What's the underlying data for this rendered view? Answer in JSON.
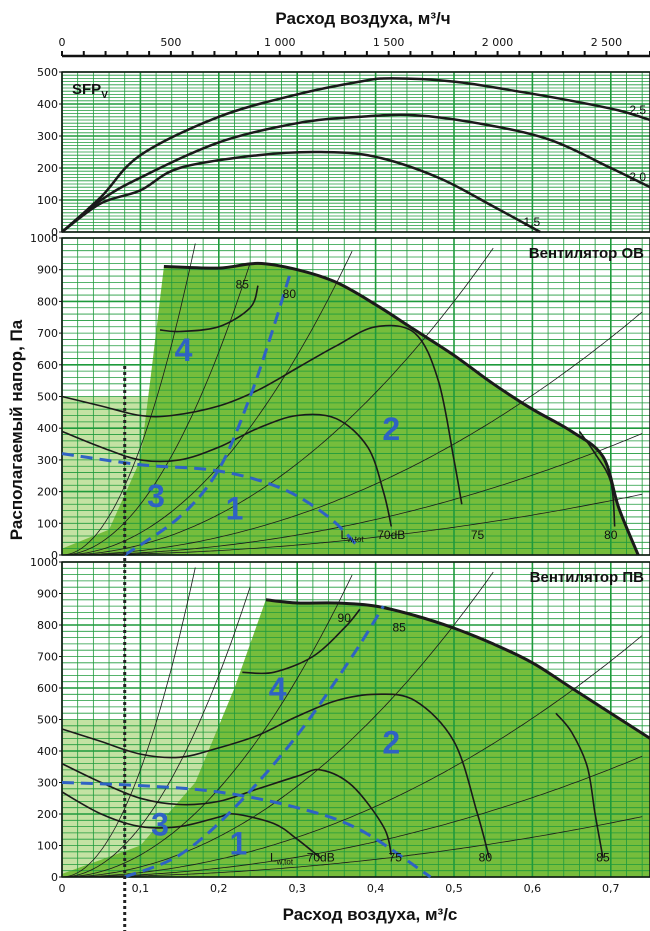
{
  "chart_data": {
    "type": "line",
    "title_top": "Расход воздуха, м³/ч",
    "xlabel_bottom": "Расход воздуха, м³/с",
    "ylabel": "Располагаемый напор, Па",
    "top_axis_ticks": [
      "0",
      "500",
      "1 000",
      "1 500",
      "2 000",
      "2 500"
    ],
    "top_axis_values": [
      0,
      500,
      1000,
      1500,
      2000,
      2500
    ],
    "bottom_axis_ticks": [
      "0",
      "0,1",
      "0,2",
      "0,3",
      "0,4",
      "0,5",
      "0,6",
      "0,7"
    ],
    "bottom_axis_values": [
      0,
      0.1,
      0.2,
      0.3,
      0.4,
      0.5,
      0.6,
      0.7
    ],
    "xlim_m3s": [
      0,
      0.75
    ],
    "guide_line_x_m3s": 0.08,
    "panels": [
      {
        "id": "sfp",
        "label": "SFPV",
        "ylim": [
          0,
          500
        ],
        "yticks": [
          "0",
          "100",
          "200",
          "300",
          "400",
          "500"
        ],
        "series": [
          {
            "name": "2.5",
            "points": [
              [
                0,
                0
              ],
              [
                0.05,
                110
              ],
              [
                0.1,
                240
              ],
              [
                0.2,
                360
              ],
              [
                0.3,
                430
              ],
              [
                0.38,
                470
              ],
              [
                0.42,
                480
              ],
              [
                0.5,
                470
              ],
              [
                0.58,
                440
              ],
              [
                0.65,
                410
              ],
              [
                0.71,
                380
              ],
              [
                0.75,
                350
              ]
            ]
          },
          {
            "name": "2.0",
            "points": [
              [
                0,
                0
              ],
              [
                0.05,
                100
              ],
              [
                0.1,
                170
              ],
              [
                0.2,
                280
              ],
              [
                0.3,
                340
              ],
              [
                0.38,
                360
              ],
              [
                0.45,
                365
              ],
              [
                0.53,
                340
              ],
              [
                0.62,
                290
              ],
              [
                0.7,
                200
              ],
              [
                0.75,
                140
              ]
            ]
          },
          {
            "name": "1.5",
            "points": [
              [
                0,
                0
              ],
              [
                0.05,
                90
              ],
              [
                0.1,
                130
              ],
              [
                0.15,
                200
              ],
              [
                0.25,
                240
              ],
              [
                0.33,
                250
              ],
              [
                0.4,
                235
              ],
              [
                0.48,
                170
              ],
              [
                0.55,
                80
              ],
              [
                0.61,
                0
              ]
            ]
          }
        ]
      },
      {
        "id": "ov",
        "label": "Вентилятор ОВ",
        "ylim": [
          0,
          1000
        ],
        "yticks": [
          "0",
          "100",
          "200",
          "300",
          "400",
          "500",
          "600",
          "700",
          "800",
          "900",
          "1000"
        ],
        "max_curve": [
          [
            0.13,
            910
          ],
          [
            0.2,
            905
          ],
          [
            0.25,
            920
          ],
          [
            0.3,
            900
          ],
          [
            0.35,
            860
          ],
          [
            0.4,
            790
          ],
          [
            0.45,
            710
          ],
          [
            0.5,
            630
          ],
          [
            0.55,
            540
          ],
          [
            0.6,
            460
          ],
          [
            0.65,
            390
          ],
          [
            0.69,
            310
          ],
          [
            0.71,
            150
          ],
          [
            0.735,
            0
          ]
        ],
        "speed_curves": [
          [
            [
              0,
              500
            ],
            [
              0.05,
              470
            ],
            [
              0.1,
              440
            ],
            [
              0.14,
              440
            ],
            [
              0.2,
              470
            ],
            [
              0.25,
              520
            ],
            [
              0.3,
              590
            ],
            [
              0.35,
              660
            ],
            [
              0.4,
              720
            ],
            [
              0.45,
              700
            ],
            [
              0.48,
              550
            ],
            [
              0.5,
              300
            ],
            [
              0.51,
              160
            ]
          ],
          [
            [
              0,
              390
            ],
            [
              0.05,
              340
            ],
            [
              0.1,
              300
            ],
            [
              0.15,
              300
            ],
            [
              0.2,
              340
            ],
            [
              0.25,
              400
            ],
            [
              0.3,
              440
            ],
            [
              0.35,
              430
            ],
            [
              0.39,
              340
            ],
            [
              0.41,
              200
            ],
            [
              0.42,
              90
            ]
          ],
          [
            [
              0.125,
              710
            ],
            [
              0.15,
              705
            ],
            [
              0.2,
              720
            ],
            [
              0.24,
              780
            ],
            [
              0.25,
              850
            ]
          ],
          [
            [
              0.66,
              390
            ],
            [
              0.68,
              320
            ],
            [
              0.7,
              230
            ],
            [
              0.705,
              90
            ]
          ]
        ],
        "sound_lines": [
          {
            "label": "85",
            "x": 0.23,
            "y": 840
          },
          {
            "label": "80",
            "x": 0.29,
            "y": 810
          },
          {
            "label": "70dB",
            "x": 0.42,
            "y": 50
          },
          {
            "label": "75",
            "x": 0.53,
            "y": 50
          },
          {
            "label": "80",
            "x": 0.7,
            "y": 50
          }
        ],
        "region_labels": [
          {
            "label": "4",
            "x": 0.155,
            "y": 650
          },
          {
            "label": "2",
            "x": 0.42,
            "y": 400
          },
          {
            "label": "3",
            "x": 0.12,
            "y": 190
          },
          {
            "label": "1",
            "x": 0.22,
            "y": 150
          }
        ],
        "lwtot_label": "Lw,tot"
      },
      {
        "id": "pv",
        "label": "Вентилятор ПВ",
        "ylim": [
          0,
          1000
        ],
        "yticks": [
          "0",
          "100",
          "200",
          "300",
          "400",
          "500",
          "600",
          "700",
          "800",
          "900",
          "1000"
        ],
        "max_curve": [
          [
            0.26,
            880
          ],
          [
            0.3,
            870
          ],
          [
            0.35,
            870
          ],
          [
            0.4,
            860
          ],
          [
            0.45,
            830
          ],
          [
            0.5,
            790
          ],
          [
            0.55,
            740
          ],
          [
            0.6,
            680
          ],
          [
            0.65,
            600
          ],
          [
            0.7,
            520
          ],
          [
            0.75,
            440
          ]
        ],
        "speed_curves": [
          [
            [
              0,
              470
            ],
            [
              0.05,
              430
            ],
            [
              0.1,
              390
            ],
            [
              0.15,
              380
            ],
            [
              0.2,
              410
            ],
            [
              0.25,
              450
            ],
            [
              0.3,
              510
            ],
            [
              0.35,
              560
            ],
            [
              0.4,
              580
            ],
            [
              0.45,
              560
            ],
            [
              0.5,
              430
            ],
            [
              0.53,
              200
            ],
            [
              0.545,
              60
            ]
          ],
          [
            [
              0,
              360
            ],
            [
              0.05,
              300
            ],
            [
              0.1,
              250
            ],
            [
              0.15,
              230
            ],
            [
              0.2,
              240
            ],
            [
              0.25,
              280
            ],
            [
              0.3,
              320
            ],
            [
              0.33,
              340
            ],
            [
              0.37,
              290
            ],
            [
              0.41,
              160
            ],
            [
              0.42,
              70
            ]
          ],
          [
            [
              0,
              270
            ],
            [
              0.05,
              200
            ],
            [
              0.1,
              160
            ],
            [
              0.15,
              160
            ],
            [
              0.2,
              190
            ],
            [
              0.22,
              200
            ],
            [
              0.27,
              170
            ],
            [
              0.3,
              120
            ],
            [
              0.33,
              60
            ]
          ],
          [
            [
              0.23,
              650
            ],
            [
              0.27,
              650
            ],
            [
              0.32,
              700
            ],
            [
              0.36,
              790
            ],
            [
              0.38,
              850
            ]
          ],
          [
            [
              0.63,
              520
            ],
            [
              0.65,
              460
            ],
            [
              0.67,
              350
            ],
            [
              0.68,
              200
            ],
            [
              0.69,
              60
            ]
          ]
        ],
        "sound_lines": [
          {
            "label": "90",
            "x": 0.36,
            "y": 810
          },
          {
            "label": "85",
            "x": 0.43,
            "y": 780
          },
          {
            "label": "70dB",
            "x": 0.33,
            "y": 50
          },
          {
            "label": "75",
            "x": 0.425,
            "y": 50
          },
          {
            "label": "80",
            "x": 0.54,
            "y": 50
          },
          {
            "label": "85",
            "x": 0.69,
            "y": 50
          }
        ],
        "region_labels": [
          {
            "label": "4",
            "x": 0.275,
            "y": 600
          },
          {
            "label": "2",
            "x": 0.42,
            "y": 430
          },
          {
            "label": "3",
            "x": 0.125,
            "y": 170
          },
          {
            "label": "1",
            "x": 0.225,
            "y": 110
          }
        ],
        "lwtot_label": "Lw,tot"
      }
    ],
    "colors": {
      "fill": "#76bd3c",
      "light_fill": "#c4e2a3",
      "grid": "#1f9a3c",
      "curve": "#1a1a1a",
      "dash": "#2f62c4"
    }
  }
}
